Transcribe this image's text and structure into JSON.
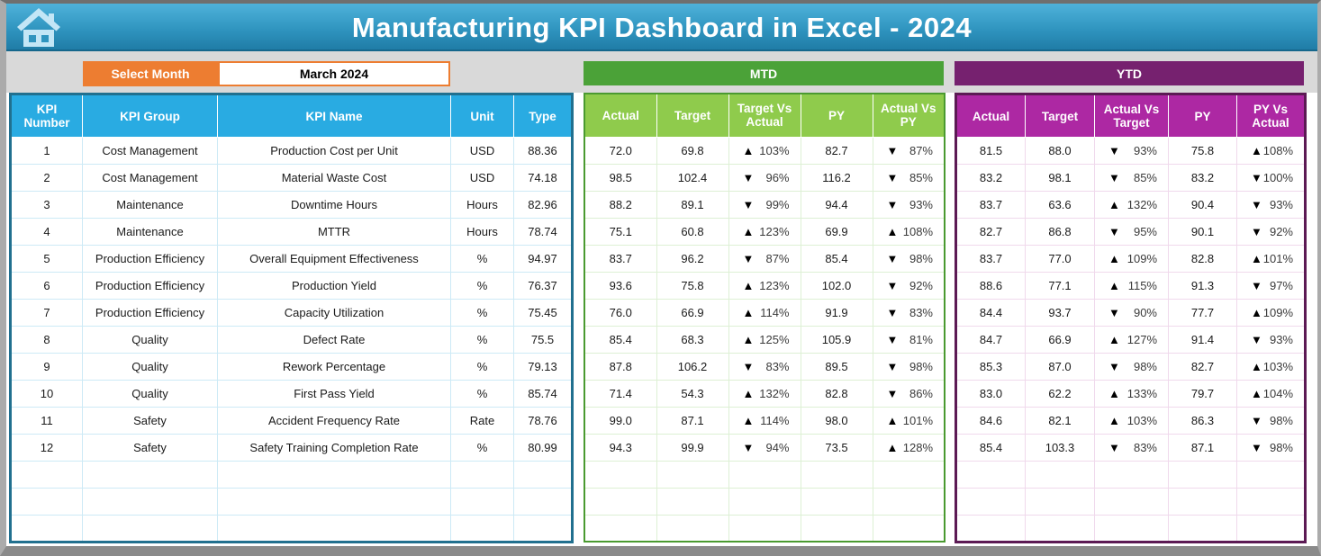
{
  "header": {
    "title": "Manufacturing KPI Dashboard in Excel - 2024"
  },
  "month_selector": {
    "label": "Select Month",
    "value": "March 2024"
  },
  "icons": {
    "up": "▲",
    "down": "▼"
  },
  "colors": {
    "banner_blue": "#2f94bf",
    "table_blue": "#29abe2",
    "orange": "#ed7d31",
    "green_dark": "#4ba238",
    "green_light": "#8fcb4c",
    "purple_dark": "#76216f",
    "magenta": "#ad28a3"
  },
  "kpi_table": {
    "columns": [
      "KPI Number",
      "KPI Group",
      "KPI Name",
      "Unit",
      "Type"
    ],
    "empty_rows": 3,
    "rows": [
      {
        "number": "1",
        "group": "Cost Management",
        "name": "Production Cost per Unit",
        "unit": "USD",
        "type": "88.36"
      },
      {
        "number": "2",
        "group": "Cost Management",
        "name": "Material Waste Cost",
        "unit": "USD",
        "type": "74.18"
      },
      {
        "number": "3",
        "group": "Maintenance",
        "name": "Downtime Hours",
        "unit": "Hours",
        "type": "82.96"
      },
      {
        "number": "4",
        "group": "Maintenance",
        "name": "MTTR",
        "unit": "Hours",
        "type": "78.74"
      },
      {
        "number": "5",
        "group": "Production Efficiency",
        "name": "Overall Equipment Effectiveness",
        "unit": "%",
        "type": "94.97"
      },
      {
        "number": "6",
        "group": "Production Efficiency",
        "name": "Production Yield",
        "unit": "%",
        "type": "76.37"
      },
      {
        "number": "7",
        "group": "Production Efficiency",
        "name": "Capacity Utilization",
        "unit": "%",
        "type": "75.45"
      },
      {
        "number": "8",
        "group": "Quality",
        "name": "Defect Rate",
        "unit": "%",
        "type": "75.5"
      },
      {
        "number": "9",
        "group": "Quality",
        "name": "Rework Percentage",
        "unit": "%",
        "type": "79.13"
      },
      {
        "number": "10",
        "group": "Quality",
        "name": "First Pass Yield",
        "unit": "%",
        "type": "85.74"
      },
      {
        "number": "11",
        "group": "Safety",
        "name": "Accident Frequency Rate",
        "unit": "Rate",
        "type": "78.76"
      },
      {
        "number": "12",
        "group": "Safety",
        "name": "Safety Training Completion Rate",
        "unit": "%",
        "type": "80.99"
      }
    ]
  },
  "mtd": {
    "title": "MTD",
    "columns": [
      "Actual",
      "Target",
      "Target Vs Actual",
      "PY",
      "Actual Vs PY"
    ],
    "empty_rows": 3,
    "rows": [
      {
        "actual": "72.0",
        "target": "69.8",
        "tva_dir": "up",
        "tva": "103%",
        "py": "82.7",
        "avp_dir": "down",
        "avp": "87%"
      },
      {
        "actual": "98.5",
        "target": "102.4",
        "tva_dir": "down",
        "tva": "96%",
        "py": "116.2",
        "avp_dir": "down",
        "avp": "85%"
      },
      {
        "actual": "88.2",
        "target": "89.1",
        "tva_dir": "down",
        "tva": "99%",
        "py": "94.4",
        "avp_dir": "down",
        "avp": "93%"
      },
      {
        "actual": "75.1",
        "target": "60.8",
        "tva_dir": "up",
        "tva": "123%",
        "py": "69.9",
        "avp_dir": "up",
        "avp": "108%"
      },
      {
        "actual": "83.7",
        "target": "96.2",
        "tva_dir": "down",
        "tva": "87%",
        "py": "85.4",
        "avp_dir": "down",
        "avp": "98%"
      },
      {
        "actual": "93.6",
        "target": "75.8",
        "tva_dir": "up",
        "tva": "123%",
        "py": "102.0",
        "avp_dir": "down",
        "avp": "92%"
      },
      {
        "actual": "76.0",
        "target": "66.9",
        "tva_dir": "up",
        "tva": "114%",
        "py": "91.9",
        "avp_dir": "down",
        "avp": "83%"
      },
      {
        "actual": "85.4",
        "target": "68.3",
        "tva_dir": "up",
        "tva": "125%",
        "py": "105.9",
        "avp_dir": "down",
        "avp": "81%"
      },
      {
        "actual": "87.8",
        "target": "106.2",
        "tva_dir": "down",
        "tva": "83%",
        "py": "89.5",
        "avp_dir": "down",
        "avp": "98%"
      },
      {
        "actual": "71.4",
        "target": "54.3",
        "tva_dir": "up",
        "tva": "132%",
        "py": "82.8",
        "avp_dir": "down",
        "avp": "86%"
      },
      {
        "actual": "99.0",
        "target": "87.1",
        "tva_dir": "up",
        "tva": "114%",
        "py": "98.0",
        "avp_dir": "up",
        "avp": "101%"
      },
      {
        "actual": "94.3",
        "target": "99.9",
        "tva_dir": "down",
        "tva": "94%",
        "py": "73.5",
        "avp_dir": "up",
        "avp": "128%"
      }
    ]
  },
  "ytd": {
    "title": "YTD",
    "columns": [
      "Actual",
      "Target",
      "Actual Vs Target",
      "PY",
      "PY Vs Actual"
    ],
    "empty_rows": 3,
    "rows": [
      {
        "actual": "81.5",
        "target": "88.0",
        "avt_dir": "down",
        "avt": "93%",
        "py": "75.8",
        "pva_dir": "up",
        "pva": "108%"
      },
      {
        "actual": "83.2",
        "target": "98.1",
        "avt_dir": "down",
        "avt": "85%",
        "py": "83.2",
        "pva_dir": "down",
        "pva": "100%"
      },
      {
        "actual": "83.7",
        "target": "63.6",
        "avt_dir": "up",
        "avt": "132%",
        "py": "90.4",
        "pva_dir": "down",
        "pva": "93%"
      },
      {
        "actual": "82.7",
        "target": "86.8",
        "avt_dir": "down",
        "avt": "95%",
        "py": "90.1",
        "pva_dir": "down",
        "pva": "92%"
      },
      {
        "actual": "83.7",
        "target": "77.0",
        "avt_dir": "up",
        "avt": "109%",
        "py": "82.8",
        "pva_dir": "up",
        "pva": "101%"
      },
      {
        "actual": "88.6",
        "target": "77.1",
        "avt_dir": "up",
        "avt": "115%",
        "py": "91.3",
        "pva_dir": "down",
        "pva": "97%"
      },
      {
        "actual": "84.4",
        "target": "93.7",
        "avt_dir": "down",
        "avt": "90%",
        "py": "77.7",
        "pva_dir": "up",
        "pva": "109%"
      },
      {
        "actual": "84.7",
        "target": "66.9",
        "avt_dir": "up",
        "avt": "127%",
        "py": "91.4",
        "pva_dir": "down",
        "pva": "93%"
      },
      {
        "actual": "85.3",
        "target": "87.0",
        "avt_dir": "down",
        "avt": "98%",
        "py": "82.7",
        "pva_dir": "up",
        "pva": "103%"
      },
      {
        "actual": "83.0",
        "target": "62.2",
        "avt_dir": "up",
        "avt": "133%",
        "py": "79.7",
        "pva_dir": "up",
        "pva": "104%"
      },
      {
        "actual": "84.6",
        "target": "82.1",
        "avt_dir": "up",
        "avt": "103%",
        "py": "86.3",
        "pva_dir": "down",
        "pva": "98%"
      },
      {
        "actual": "85.4",
        "target": "103.3",
        "avt_dir": "down",
        "avt": "83%",
        "py": "87.1",
        "pva_dir": "down",
        "pva": "98%"
      }
    ]
  }
}
